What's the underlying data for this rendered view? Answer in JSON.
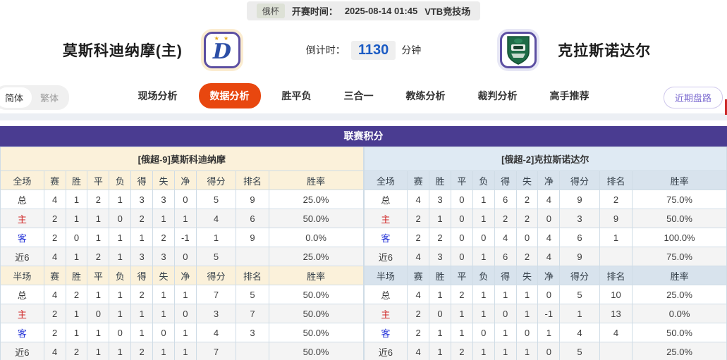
{
  "top_bar": {
    "league": "俄杯",
    "kickoff_label": "开赛时间：",
    "kickoff_time": "2025-08-14 01:45",
    "venue": "VTB竞技场"
  },
  "match_header": {
    "home": {
      "name": "莫斯科迪纳摩(主)"
    },
    "away": {
      "name": "克拉斯诺达尔"
    },
    "countdown": {
      "label": "倒计时：",
      "value": "1130",
      "unit": "分钟"
    }
  },
  "lang_toggle": {
    "simplified": "简体",
    "traditional": "繁体"
  },
  "nav": {
    "tabs": [
      {
        "label": "现场分析",
        "active": false
      },
      {
        "label": "数据分析",
        "active": true
      },
      {
        "label": "胜平负",
        "active": false
      },
      {
        "label": "三合一",
        "active": false
      },
      {
        "label": "教练分析",
        "active": false
      },
      {
        "label": "裁判分析",
        "active": false
      },
      {
        "label": "高手推荐",
        "active": false
      }
    ],
    "side_button": "近期盘路"
  },
  "section": {
    "title": "联赛积分"
  },
  "tables": {
    "columns_full": [
      "全场",
      "赛",
      "胜",
      "平",
      "负",
      "得",
      "失",
      "净",
      "得分",
      "排名",
      "胜率"
    ],
    "columns_half": [
      "半场",
      "赛",
      "胜",
      "平",
      "负",
      "得",
      "失",
      "净",
      "得分",
      "排名",
      "胜率"
    ],
    "home": {
      "team_header": "[俄超-9]莫斯科迪纳摩",
      "full": [
        {
          "label": "总",
          "type": "total",
          "cells": [
            "4",
            "1",
            "2",
            "1",
            "3",
            "3",
            "0",
            "5",
            "9",
            "25.0%"
          ]
        },
        {
          "label": "主",
          "type": "home",
          "cells": [
            "2",
            "1",
            "1",
            "0",
            "2",
            "1",
            "1",
            "4",
            "6",
            "50.0%"
          ]
        },
        {
          "label": "客",
          "type": "away",
          "cells": [
            "2",
            "0",
            "1",
            "1",
            "1",
            "2",
            "-1",
            "1",
            "9",
            "0.0%"
          ]
        },
        {
          "label": "近6",
          "type": "last6",
          "cells": [
            "4",
            "1",
            "2",
            "1",
            "3",
            "3",
            "0",
            "5",
            "",
            "25.0%"
          ]
        }
      ],
      "half": [
        {
          "label": "总",
          "type": "total",
          "cells": [
            "4",
            "2",
            "1",
            "1",
            "2",
            "1",
            "1",
            "7",
            "5",
            "50.0%"
          ]
        },
        {
          "label": "主",
          "type": "home",
          "cells": [
            "2",
            "1",
            "0",
            "1",
            "1",
            "1",
            "0",
            "3",
            "7",
            "50.0%"
          ]
        },
        {
          "label": "客",
          "type": "away",
          "cells": [
            "2",
            "1",
            "1",
            "0",
            "1",
            "0",
            "1",
            "4",
            "3",
            "50.0%"
          ]
        },
        {
          "label": "近6",
          "type": "last6",
          "cells": [
            "4",
            "2",
            "1",
            "1",
            "2",
            "1",
            "1",
            "7",
            "",
            "50.0%"
          ]
        }
      ]
    },
    "away": {
      "team_header": "[俄超-2]克拉斯诺达尔",
      "full": [
        {
          "label": "总",
          "type": "total",
          "cells": [
            "4",
            "3",
            "0",
            "1",
            "6",
            "2",
            "4",
            "9",
            "2",
            "75.0%"
          ]
        },
        {
          "label": "主",
          "type": "home",
          "cells": [
            "2",
            "1",
            "0",
            "1",
            "2",
            "2",
            "0",
            "3",
            "9",
            "50.0%"
          ]
        },
        {
          "label": "客",
          "type": "away",
          "cells": [
            "2",
            "2",
            "0",
            "0",
            "4",
            "0",
            "4",
            "6",
            "1",
            "100.0%"
          ]
        },
        {
          "label": "近6",
          "type": "last6",
          "cells": [
            "4",
            "3",
            "0",
            "1",
            "6",
            "2",
            "4",
            "9",
            "",
            "75.0%"
          ]
        }
      ],
      "half": [
        {
          "label": "总",
          "type": "total",
          "cells": [
            "4",
            "1",
            "2",
            "1",
            "1",
            "1",
            "0",
            "5",
            "10",
            "25.0%"
          ]
        },
        {
          "label": "主",
          "type": "home",
          "cells": [
            "2",
            "0",
            "1",
            "1",
            "0",
            "1",
            "-1",
            "1",
            "13",
            "0.0%"
          ]
        },
        {
          "label": "客",
          "type": "away",
          "cells": [
            "2",
            "1",
            "1",
            "0",
            "1",
            "0",
            "1",
            "4",
            "4",
            "50.0%"
          ]
        },
        {
          "label": "近6",
          "type": "last6",
          "cells": [
            "4",
            "1",
            "2",
            "1",
            "1",
            "1",
            "0",
            "5",
            "",
            "25.0%"
          ]
        }
      ]
    }
  },
  "colors": {
    "purple_header": "#4a3c91",
    "active_tab": "#e8470f",
    "countdown_blue": "#1b5bc4",
    "side_button_purple": "#7c6bd0",
    "home_row_red": "#cf2626",
    "away_row_blue": "#2433d8",
    "left_panel_bg": "#fbf1da",
    "right_panel_bg": "#dfeaf3",
    "right_header_bg": "#d8e3ed",
    "table_border": "#cfdce6"
  }
}
